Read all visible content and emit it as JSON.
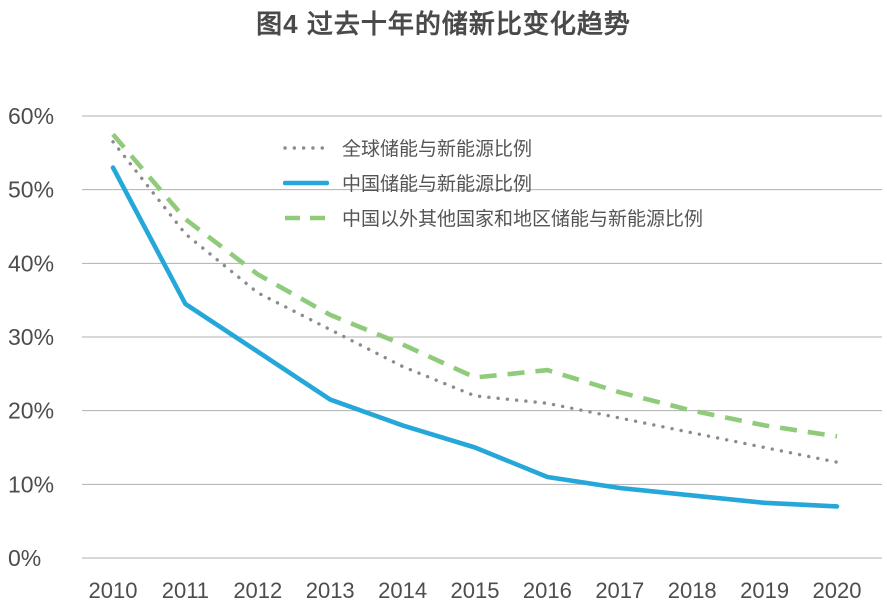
{
  "title": "图4 过去十年的储新比变化趋势",
  "colors": {
    "background": "#ffffff",
    "title_text": "#4a4a4a",
    "axis_text": "#4d4d4d",
    "gridline": "#b0b0b0",
    "global_series": "#8c8c8c",
    "china_series": "#25a8d9",
    "non_china_series": "#8fcb7a"
  },
  "chart_data": {
    "type": "line",
    "title": "图4 过去十年的储新比变化趋势",
    "x": [
      2010,
      2011,
      2012,
      2013,
      2014,
      2015,
      2016,
      2017,
      2018,
      2019,
      2020
    ],
    "x_labels": [
      "2010",
      "2011",
      "2012",
      "2013",
      "2014",
      "2015",
      "2016",
      "2017",
      "2018",
      "2019",
      "2020"
    ],
    "y_ticks": [
      {
        "value": 0,
        "label": "0%"
      },
      {
        "value": 10,
        "label": "10%"
      },
      {
        "value": 20,
        "label": "20%"
      },
      {
        "value": 30,
        "label": "30%"
      },
      {
        "value": 40,
        "label": "40%"
      },
      {
        "value": 50,
        "label": "50%"
      },
      {
        "value": 60,
        "label": "60%"
      }
    ],
    "ylim": [
      0,
      60
    ],
    "y_unit": "percent",
    "grid": "horizontal",
    "legend_position": "top-left-inside",
    "series": [
      {
        "name": "全球储能与新能源比例",
        "style": "dotted",
        "color": "#8c8c8c",
        "values": [
          56.5,
          44,
          36,
          31,
          26,
          22,
          21,
          19,
          17,
          15,
          13
        ]
      },
      {
        "name": "中国储能与新能源比例",
        "style": "solid",
        "color": "#25a8d9",
        "values": [
          53,
          34.5,
          28,
          21.5,
          18,
          15,
          11,
          9.5,
          8.5,
          7.5,
          7
        ]
      },
      {
        "name": "中国以外其他国家和地区储能与新能源比例",
        "style": "dashed",
        "color": "#8fcb7a",
        "values": [
          57.5,
          46,
          38.5,
          33,
          29,
          24.5,
          25.5,
          22.5,
          20,
          18,
          16.5
        ]
      }
    ]
  }
}
